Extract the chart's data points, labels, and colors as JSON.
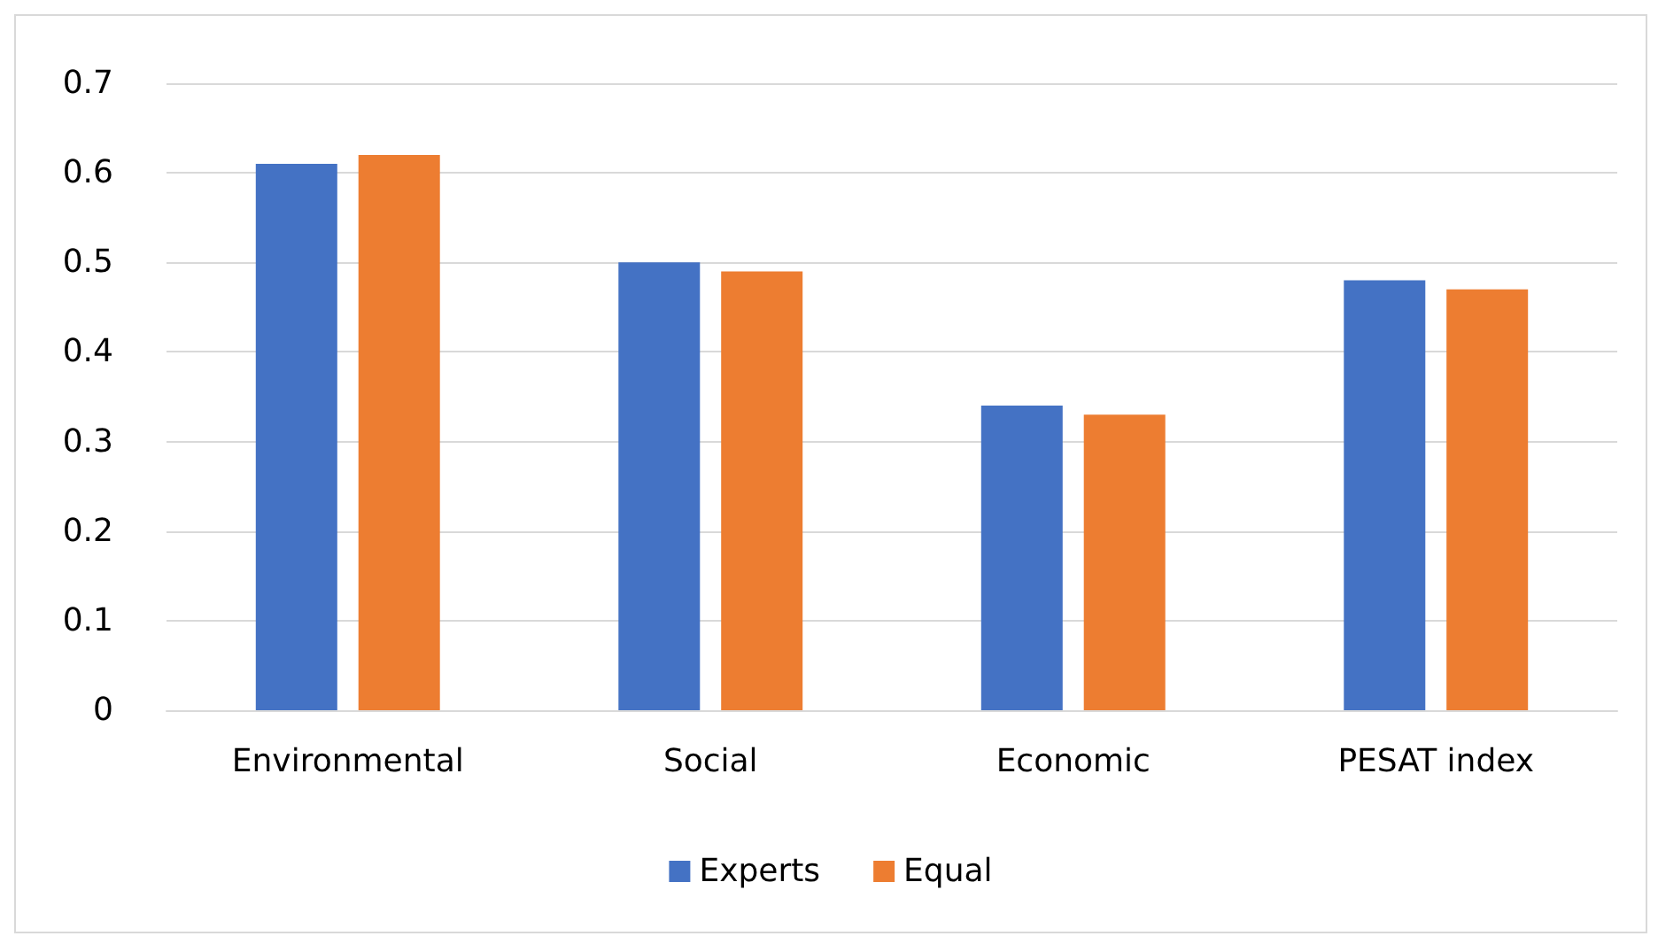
{
  "chart_data": {
    "type": "bar",
    "categories": [
      "Environmental",
      "Social",
      "Economic",
      "PESAT index"
    ],
    "series": [
      {
        "name": "Experts",
        "color": "#4472c4",
        "values": [
          0.61,
          0.5,
          0.34,
          0.48
        ]
      },
      {
        "name": "Equal",
        "color": "#ed7d31",
        "values": [
          0.62,
          0.49,
          0.33,
          0.47
        ]
      }
    ],
    "ylim": [
      0,
      0.7
    ],
    "yticks": [
      {
        "value": 0,
        "label": "0"
      },
      0.1,
      0.2,
      0.3,
      0.4,
      0.5,
      0.6,
      0.7
    ],
    "grid": "y",
    "legend": "bottom"
  }
}
